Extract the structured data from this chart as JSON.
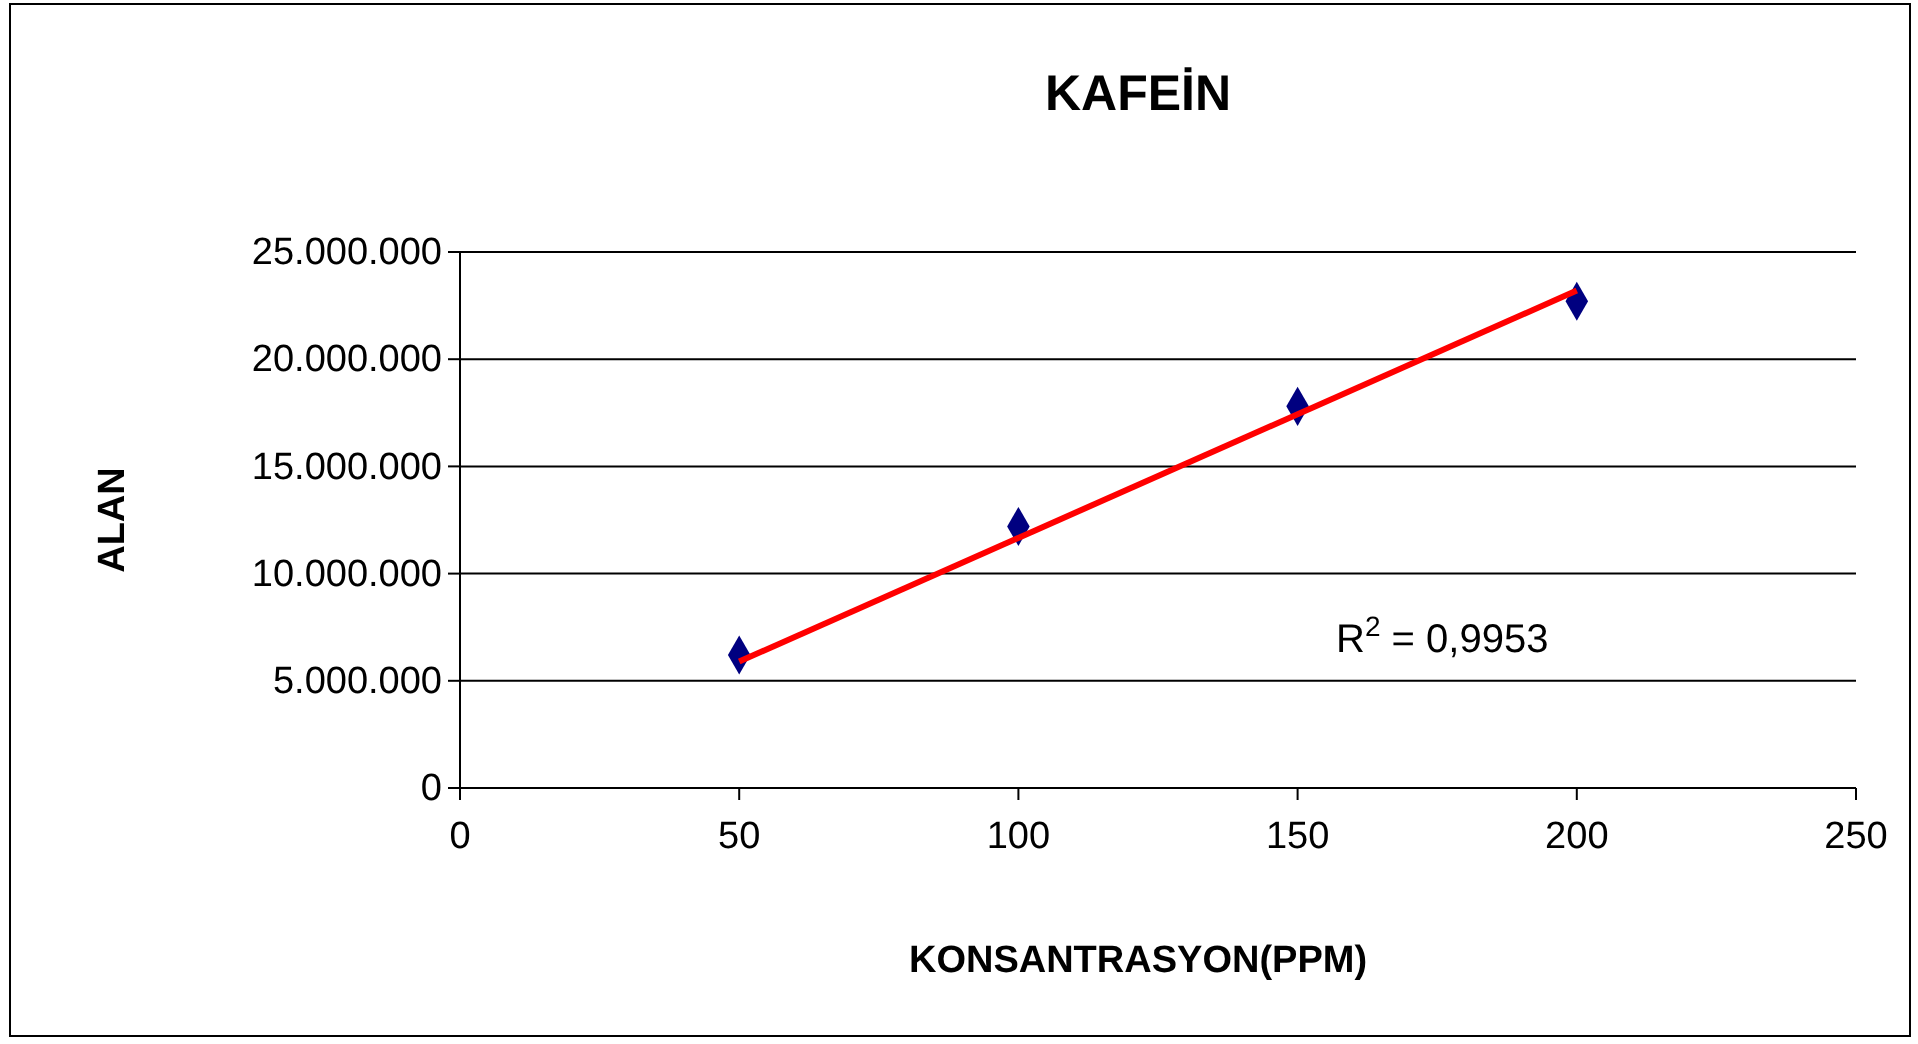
{
  "chart_data": {
    "type": "scatter",
    "title": "KAFEİN",
    "xlabel": "KONSANTRASYON(PPM)",
    "ylabel": "ALAN",
    "x": [
      50,
      100,
      150,
      200
    ],
    "series": [
      {
        "color": "#000080",
        "marker": "diamond",
        "values": [
          6200000,
          12200000,
          17800000,
          22700000
        ]
      },
      {
        "type": "line",
        "color": "#ff0000",
        "marker": "none",
        "line_style": "solid",
        "x": [
          50,
          200
        ],
        "values": [
          5900000,
          23200000
        ]
      }
    ],
    "xlim": [
      0,
      250
    ],
    "xticks": [
      0,
      50,
      100,
      150,
      200,
      250
    ],
    "ylim": [
      0,
      25000000
    ],
    "yticks": [
      {
        "value": 0,
        "label": "0"
      },
      {
        "value": 5000000,
        "label": "5.000.000"
      },
      {
        "value": 10000000,
        "label": "10.000.000"
      },
      {
        "value": 15000000,
        "label": "15.000.000"
      },
      {
        "value": 20000000,
        "label": "20.000.000"
      },
      {
        "value": 25000000,
        "label": "25.000.000"
      }
    ],
    "grid": "y",
    "legend": false,
    "annotations": [
      "R$^{2}$ = 0,9953"
    ]
  }
}
